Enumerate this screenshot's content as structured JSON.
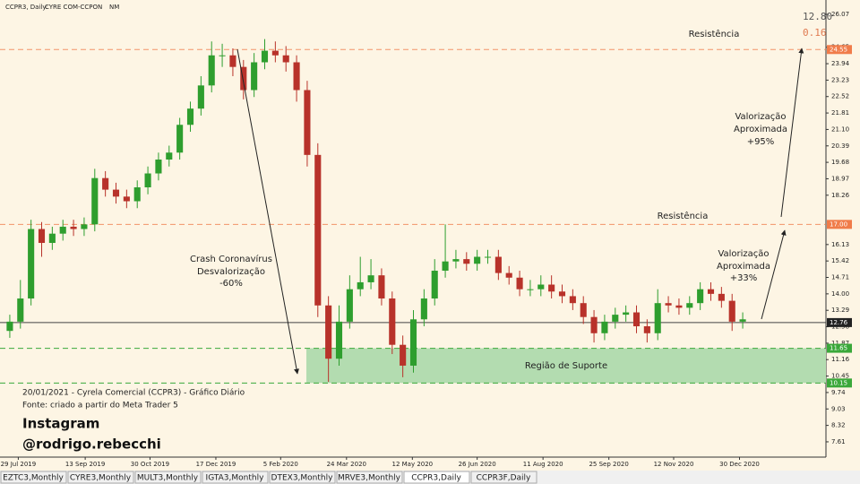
{
  "header": {
    "symbol": "CCPR3, Daily:",
    "company": "CYRE COM-CCPON",
    "segment": "NM",
    "price_top": "12.80",
    "price_change": "0.16"
  },
  "chart_data": {
    "type": "candlestick",
    "open": [
      12.4,
      12.8,
      13.8,
      16.8,
      16.2,
      16.6,
      16.9,
      16.8,
      17.0,
      19.0,
      18.5,
      18.2,
      18.0,
      18.6,
      19.2,
      19.8,
      20.1,
      21.3,
      22.0,
      23.0,
      24.3,
      24.3,
      23.8,
      22.8,
      24.0,
      24.5,
      24.3,
      24.0,
      22.8,
      20.0,
      13.5,
      11.2,
      12.8,
      14.2,
      14.5,
      14.8,
      13.8,
      11.8,
      10.9,
      12.9,
      13.8,
      15.0,
      15.4,
      15.5,
      15.3,
      15.6,
      15.6,
      14.9,
      14.7,
      14.2,
      14.2,
      14.4,
      14.1,
      13.9,
      13.6,
      13.0,
      12.3,
      12.8,
      13.1,
      13.2,
      12.6,
      12.3,
      13.6,
      13.5,
      13.4,
      13.6,
      14.2,
      14.0,
      13.7,
      12.8
    ],
    "high": [
      13.1,
      14.6,
      17.2,
      17.1,
      16.9,
      17.2,
      17.2,
      17.3,
      19.4,
      19.3,
      18.8,
      18.5,
      18.9,
      19.5,
      20.1,
      20.4,
      21.6,
      22.3,
      23.4,
      24.9,
      24.8,
      24.6,
      24.1,
      24.4,
      25.0,
      24.9,
      24.7,
      24.3,
      23.2,
      20.5,
      13.9,
      13.5,
      14.8,
      15.6,
      15.5,
      15.1,
      14.1,
      12.2,
      13.3,
      14.2,
      15.5,
      17.0,
      15.9,
      15.8,
      15.9,
      15.9,
      15.9,
      15.2,
      15.0,
      14.6,
      14.8,
      14.8,
      14.4,
      14.2,
      13.9,
      13.3,
      13.1,
      13.4,
      13.5,
      13.5,
      12.9,
      14.2,
      13.9,
      13.8,
      13.9,
      14.5,
      14.5,
      14.3,
      14.0,
      13.2
    ],
    "low": [
      12.1,
      12.5,
      13.5,
      15.6,
      15.9,
      16.3,
      16.5,
      16.5,
      16.7,
      18.2,
      17.9,
      17.7,
      17.7,
      18.3,
      18.9,
      19.5,
      19.8,
      21.0,
      21.7,
      22.7,
      23.8,
      23.4,
      22.4,
      22.5,
      23.7,
      24.0,
      23.6,
      22.3,
      19.5,
      13.0,
      10.2,
      10.9,
      12.5,
      13.9,
      14.2,
      13.5,
      11.4,
      10.4,
      10.6,
      12.6,
      13.5,
      14.7,
      15.1,
      15.0,
      15.0,
      15.3,
      14.6,
      14.4,
      13.9,
      13.9,
      13.9,
      13.8,
      13.6,
      13.3,
      12.7,
      11.9,
      12.0,
      12.5,
      12.8,
      12.3,
      11.9,
      12.0,
      13.2,
      13.1,
      13.1,
      13.3,
      13.7,
      13.4,
      12.4,
      12.5
    ],
    "close": [
      12.8,
      13.8,
      16.8,
      16.2,
      16.6,
      16.9,
      16.8,
      17.0,
      19.0,
      18.5,
      18.2,
      18.0,
      18.6,
      19.2,
      19.8,
      20.1,
      21.3,
      22.0,
      23.0,
      24.3,
      24.3,
      23.8,
      22.8,
      24.0,
      24.5,
      24.3,
      24.0,
      22.8,
      20.0,
      13.5,
      11.2,
      12.8,
      14.2,
      14.5,
      14.8,
      13.8,
      11.8,
      10.9,
      12.9,
      13.8,
      15.0,
      15.4,
      15.5,
      15.3,
      15.6,
      15.6,
      14.9,
      14.7,
      14.2,
      14.2,
      14.4,
      14.1,
      13.9,
      13.6,
      13.0,
      12.3,
      12.8,
      13.1,
      13.2,
      12.6,
      12.3,
      13.6,
      13.5,
      13.4,
      13.6,
      14.2,
      14.0,
      13.7,
      12.8,
      12.9
    ],
    "up_color": "#2e9e2e",
    "down_color": "#b8322a",
    "xlim": [
      0,
      70
    ],
    "xticks": [
      {
        "value": 1.3,
        "label": "29 Jul 2019"
      },
      {
        "value": 7.6,
        "label": "13 Sep 2019"
      },
      {
        "value": 13.7,
        "label": "30 Oct 2019"
      },
      {
        "value": 19.9,
        "label": "17 Dec 2019"
      },
      {
        "value": 26,
        "label": "5 Feb 2020"
      },
      {
        "value": 32.2,
        "label": "24 Mar 2020"
      },
      {
        "value": 38.4,
        "label": "12 May 2020"
      },
      {
        "value": 44.5,
        "label": "26 Jun 2020"
      },
      {
        "value": 50.7,
        "label": "11 Aug 2020"
      },
      {
        "value": 56.9,
        "label": "25 Sep 2020"
      },
      {
        "value": 63,
        "label": "12 Nov 2020"
      },
      {
        "value": 69.2,
        "label": "30 Dec 2020"
      }
    ],
    "ylim": [
      6.95,
      26.69
    ],
    "yticks": [
      26.07,
      24.65,
      23.94,
      23.23,
      22.52,
      21.81,
      {
        "value": 21.1,
        "label": "21.10"
      },
      20.39,
      19.68,
      18.97,
      18.26,
      16.13,
      15.42,
      14.71,
      {
        "value": 14,
        "label": "14.00"
      },
      13.29,
      12.58,
      11.87,
      11.16,
      10.45,
      9.74,
      9.03,
      8.32,
      7.61
    ],
    "resistance_levels": [
      24.55,
      {
        "value": 17,
        "label": "17.00"
      }
    ],
    "resistance_color": "#f07c4a",
    "last_price": 12.76,
    "support_zone": [
      11.65,
      10.15
    ],
    "support_color": "#3aa83a",
    "annotations": {
      "resistance_top": "Resistência",
      "resistance_mid": "Resistência",
      "crash": [
        "Crash Coronavírus",
        "Desvalorização",
        "-60%"
      ],
      "gain_top": [
        "Valorização",
        "Aproximada",
        "+95%"
      ],
      "gain_mid": [
        "Valorização",
        "Aproximada",
        "+33%"
      ],
      "support": "Região de Suporte"
    }
  },
  "caption": {
    "line1": "20/01/2021 - Cyrela Comercial (CCPR3) - Gráfico Diário",
    "line2": "Fonte: criado a partir do Meta Trader 5",
    "instagram": "Instagram",
    "handle": "@rodrigo.rebecchi"
  },
  "tabs": {
    "items": [
      "EZTC3,Monthly",
      "CYRE3,Monthly",
      "MULT3,Monthly",
      "IGTA3,Monthly",
      "DTEX3,Monthly",
      "MRVE3,Monthly",
      "CCPR3,Daily",
      "CCPR3F,Daily"
    ],
    "active": 6
  }
}
